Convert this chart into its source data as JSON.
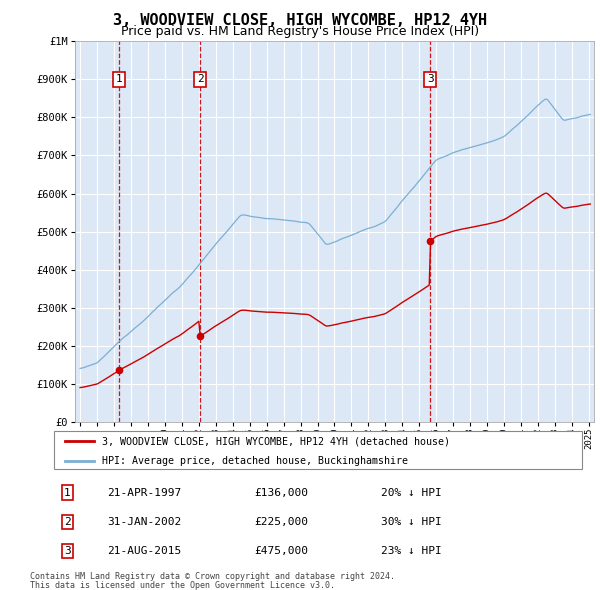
{
  "title": "3, WOODVIEW CLOSE, HIGH WYCOMBE, HP12 4YH",
  "subtitle": "Price paid vs. HM Land Registry's House Price Index (HPI)",
  "title_fontsize": 11,
  "subtitle_fontsize": 9,
  "transactions": [
    {
      "num": 1,
      "date_str": "21-APR-1997",
      "year": 1997.3,
      "price": 136000,
      "pct": "20% ↓ HPI"
    },
    {
      "num": 2,
      "date_str": "31-JAN-2002",
      "year": 2002.08,
      "price": 225000,
      "pct": "30% ↓ HPI"
    },
    {
      "num": 3,
      "date_str": "21-AUG-2015",
      "year": 2015.64,
      "price": 475000,
      "pct": "23% ↓ HPI"
    }
  ],
  "hpi_line_color": "#7bafd4",
  "price_line_color": "#cc0000",
  "vline_color": "#cc0000",
  "dot_color": "#cc0000",
  "label_box_color": "#cc0000",
  "shade_color": "#dce8f5",
  "ylim_min": 0,
  "ylim_max": 1000000,
  "xlim_min": 1994.7,
  "xlim_max": 2025.3,
  "ytick_values": [
    0,
    100000,
    200000,
    300000,
    400000,
    500000,
    600000,
    700000,
    800000,
    900000,
    1000000
  ],
  "ytick_labels": [
    "£0",
    "£100K",
    "£200K",
    "£300K",
    "£400K",
    "£500K",
    "£600K",
    "£700K",
    "£800K",
    "£900K",
    "£1M"
  ],
  "legend_line1": "3, WOODVIEW CLOSE, HIGH WYCOMBE, HP12 4YH (detached house)",
  "legend_line2": "HPI: Average price, detached house, Buckinghamshire",
  "footnote1": "Contains HM Land Registry data © Crown copyright and database right 2024.",
  "footnote2": "This data is licensed under the Open Government Licence v3.0."
}
